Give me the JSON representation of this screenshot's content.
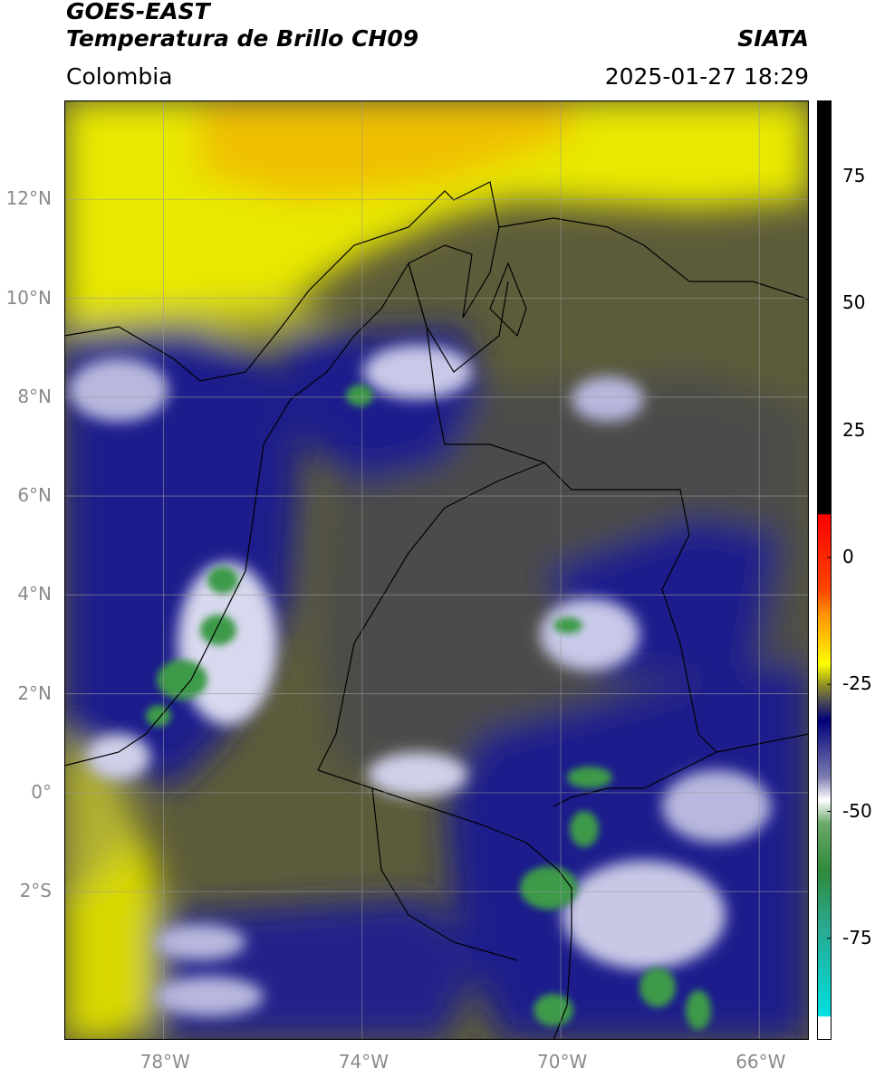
{
  "header": {
    "satellite": "GOES-EAST",
    "product": "Temperatura de Brillo CH09",
    "region": "Colombia",
    "organization": "SIATA",
    "datetime": "2025-01-27 18:29"
  },
  "map": {
    "lon_range": [
      -80,
      -65
    ],
    "lat_range": [
      -5,
      14
    ],
    "lat_ticks": [
      {
        "value": 12,
        "label": "12°N"
      },
      {
        "value": 10,
        "label": "10°N"
      },
      {
        "value": 8,
        "label": "8°N"
      },
      {
        "value": 6,
        "label": "6°N"
      },
      {
        "value": 4,
        "label": "4°N"
      },
      {
        "value": 2,
        "label": "2°N"
      },
      {
        "value": 0,
        "label": "0°"
      },
      {
        "value": -2,
        "label": "2°S"
      }
    ],
    "lon_ticks": [
      {
        "value": -78,
        "label": "78°W"
      },
      {
        "value": -74,
        "label": "74°W"
      },
      {
        "value": -70,
        "label": "70°W"
      },
      {
        "value": -66,
        "label": "66°W"
      }
    ],
    "grid": true
  },
  "colorbar": {
    "min": -95,
    "max": 90,
    "ticks": [
      {
        "value": 75,
        "label": "75"
      },
      {
        "value": 50,
        "label": "50"
      },
      {
        "value": 25,
        "label": "25"
      },
      {
        "value": 0,
        "label": "0"
      },
      {
        "value": -25,
        "label": "-25"
      },
      {
        "value": -50,
        "label": "-50"
      },
      {
        "value": -75,
        "label": "-75"
      }
    ],
    "colors": {
      "warm_top": "#000000",
      "red": "#ff0000",
      "orange": "#ff9900",
      "yellow": "#ffff00",
      "olive": "#6e6e2a",
      "gray": "#4a4a55",
      "navy": "#00007a",
      "white": "#ffffff",
      "green": "#2f8a3a",
      "cyan": "#00e0e0"
    }
  }
}
